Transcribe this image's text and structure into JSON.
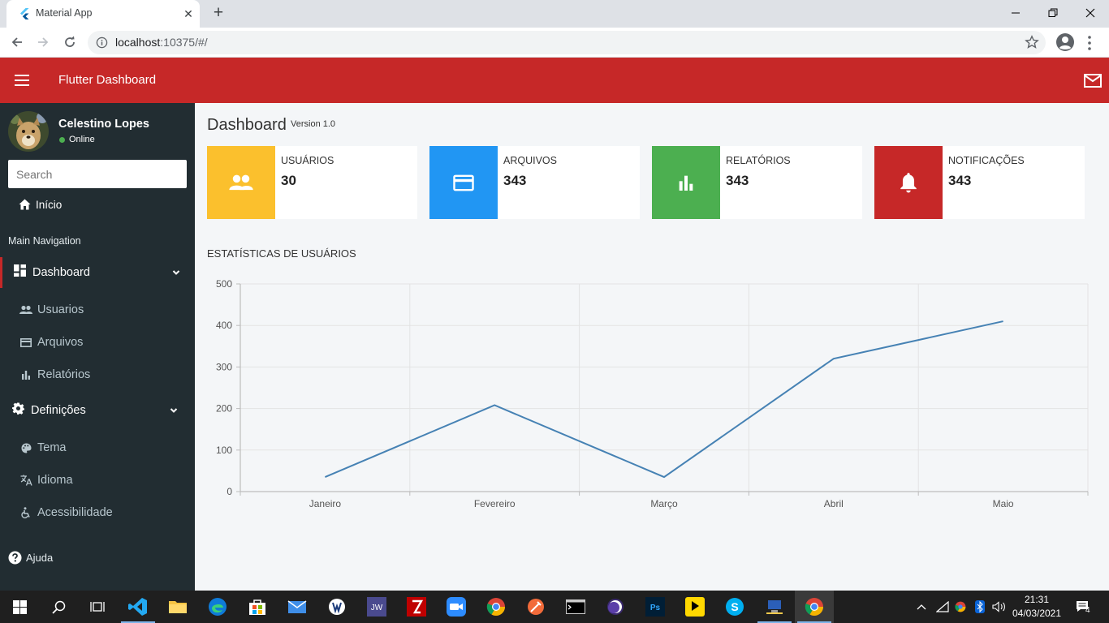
{
  "browser": {
    "tab_title": "Material App",
    "tab_close": "✕",
    "new_tab": "+",
    "url_host": "localhost",
    "url_rest": ":10375/#/"
  },
  "appbar": {
    "title": "Flutter Dashboard"
  },
  "sidebar": {
    "user_name": "Celestino Lopes",
    "status": "Online",
    "search_placeholder": "Search",
    "home_label": "Início",
    "section_label": "Main Navigation",
    "groups": [
      {
        "label": "Dashboard",
        "icon": "dashboard-icon",
        "items": [
          {
            "label": "Usuarios",
            "icon": "people-icon"
          },
          {
            "label": "Arquivos",
            "icon": "credit-card-icon"
          },
          {
            "label": "Relatórios",
            "icon": "bar-chart-icon"
          }
        ]
      },
      {
        "label": "Definições",
        "icon": "gear-icon",
        "items": [
          {
            "label": "Tema",
            "icon": "palette-icon"
          },
          {
            "label": "Idioma",
            "icon": "translate-icon"
          },
          {
            "label": "Acessibilidade",
            "icon": "accessibility-icon"
          }
        ]
      }
    ],
    "help_label": "Ajuda"
  },
  "content": {
    "title": "Dashboard",
    "version": "Version 1.0",
    "cards": [
      {
        "label": "USUÁRIOS",
        "value": "30",
        "color": "#fbc02d",
        "icon": "people-icon"
      },
      {
        "label": "ARQUIVOS",
        "value": "343",
        "color": "#2196f3",
        "icon": "credit-card-icon"
      },
      {
        "label": "RELATÓRIOS",
        "value": "343",
        "color": "#4caf50",
        "icon": "bar-chart-icon"
      },
      {
        "label": "NOTIFICAÇÕES",
        "value": "343",
        "color": "#c62828",
        "icon": "bell-icon"
      }
    ],
    "chart_title": "ESTATÍSTICAS DE USUÁRIOS"
  },
  "chart_data": {
    "type": "line",
    "categories": [
      "Janeiro",
      "Fevereiro",
      "Março",
      "Abril",
      "Maio"
    ],
    "series": [
      {
        "values": [
          35,
          208,
          35,
          320,
          410
        ],
        "color": "#4682b4"
      }
    ],
    "ylim": [
      0,
      500
    ],
    "yticks": [
      0,
      100,
      200,
      300,
      400,
      500
    ],
    "grid": true
  },
  "taskbar": {
    "time": "21:31",
    "date": "04/03/2021",
    "notification_count": "4"
  },
  "colors": {
    "brand": "#c62828",
    "sidebar": "#222d32",
    "content_bg": "#f4f6f8"
  }
}
